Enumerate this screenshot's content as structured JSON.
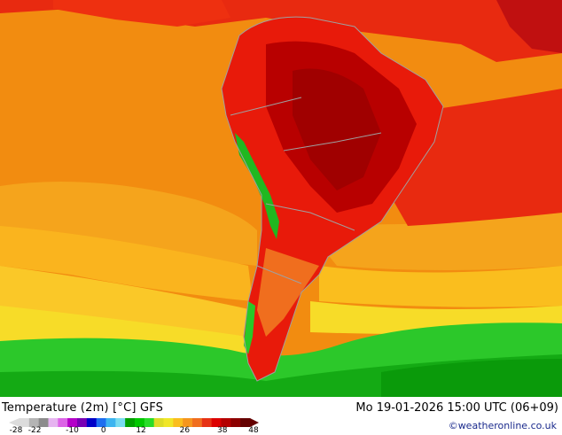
{
  "header": {
    "title": "Temperature (2m) [°C] GFS",
    "datetime": "Mo 19-01-2026 15:00 UTC (06+09)",
    "credit": "©weatheronline.co.uk"
  },
  "colorbar": {
    "unit": "°C",
    "ticks": [
      "-28",
      "-22",
      "-10",
      "0",
      "12",
      "26",
      "38",
      "48"
    ],
    "tick_values": [
      -28,
      -22,
      -10,
      0,
      12,
      26,
      38,
      48
    ],
    "range": [
      -28,
      48
    ],
    "colors": [
      "#dcdcdc",
      "#b4b4b4",
      "#8c8c8c",
      "#e6b4f0",
      "#dc64e6",
      "#b400c8",
      "#7800b4",
      "#0000c8",
      "#1e6ef0",
      "#3cb4f0",
      "#78dcf0",
      "#00a000",
      "#00c800",
      "#28dc28",
      "#dcdc28",
      "#f0e628",
      "#fabe1e",
      "#f5961e",
      "#f06e1e",
      "#e63214",
      "#dc0000",
      "#b40000",
      "#8c0000",
      "#640000"
    ]
  },
  "map_colors": {
    "ocean_hot": "#f28c10",
    "ocean_warm": "#f5a41c",
    "ocean_mild": "#fabe1e",
    "ocean_cool": "#f7dc28",
    "south_green": "#2cc82a",
    "deep_green": "#0a9a0a",
    "land_red": "#e81a0a",
    "land_darkred": "#b80000",
    "andes_green": "#20b820",
    "border": "#a0a0a0"
  }
}
